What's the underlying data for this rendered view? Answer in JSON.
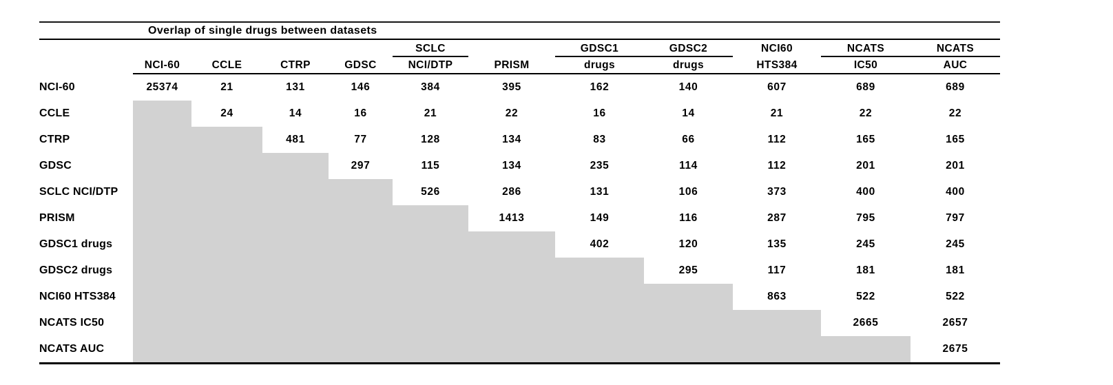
{
  "chart_data": {
    "type": "table",
    "title": "Overlap of single drugs between datasets",
    "header_row1": [
      "",
      "",
      "",
      "",
      "SCLC",
      "",
      "GDSC1",
      "GDSC2",
      "NCI60",
      "NCATS",
      "NCATS"
    ],
    "header_row2": [
      "NCI-60",
      "CCLE",
      "CTRP",
      "GDSC",
      "NCI/DTP",
      "PRISM",
      "drugs",
      "drugs",
      "HTS384",
      "IC50",
      "AUC"
    ],
    "row_labels": [
      "NCI-60",
      "CCLE",
      "CTRP",
      "GDSC",
      "SCLC NCI/DTP",
      "PRISM",
      "GDSC1 drugs",
      "GDSC2 drugs",
      "NCI60 HTS384",
      "NCATS IC50",
      "NCATS AUC"
    ],
    "matrix": [
      [
        "25374",
        "21",
        "131",
        "146",
        "384",
        "395",
        "162",
        "140",
        "607",
        "689",
        "689"
      ],
      [
        "",
        "24",
        "14",
        "16",
        "21",
        "22",
        "16",
        "14",
        "21",
        "22",
        "22"
      ],
      [
        "",
        "",
        "481",
        "77",
        "128",
        "134",
        "83",
        "66",
        "112",
        "165",
        "165"
      ],
      [
        "",
        "",
        "",
        "297",
        "115",
        "134",
        "235",
        "114",
        "112",
        "201",
        "201"
      ],
      [
        "",
        "",
        "",
        "",
        "526",
        "286",
        "131",
        "106",
        "373",
        "400",
        "400"
      ],
      [
        "",
        "",
        "",
        "",
        "",
        "1413",
        "149",
        "116",
        "287",
        "795",
        "797"
      ],
      [
        "",
        "",
        "",
        "",
        "",
        "",
        "402",
        "120",
        "135",
        "245",
        "245"
      ],
      [
        "",
        "",
        "",
        "",
        "",
        "",
        "",
        "295",
        "117",
        "181",
        "181"
      ],
      [
        "",
        "",
        "",
        "",
        "",
        "",
        "",
        "",
        "863",
        "522",
        "522"
      ],
      [
        "",
        "",
        "",
        "",
        "",
        "",
        "",
        "",
        "",
        "2665",
        "2657"
      ],
      [
        "",
        "",
        "",
        "",
        "",
        "",
        "",
        "",
        "",
        "",
        "2675"
      ]
    ],
    "lower_triangle_shaded": true,
    "legend_position": "none",
    "grid": "off"
  },
  "colors": {
    "lower_triangle_fill": "#d2d2d2",
    "line_color": "#000000",
    "text_color": "#000000",
    "background": "#ffffff"
  }
}
